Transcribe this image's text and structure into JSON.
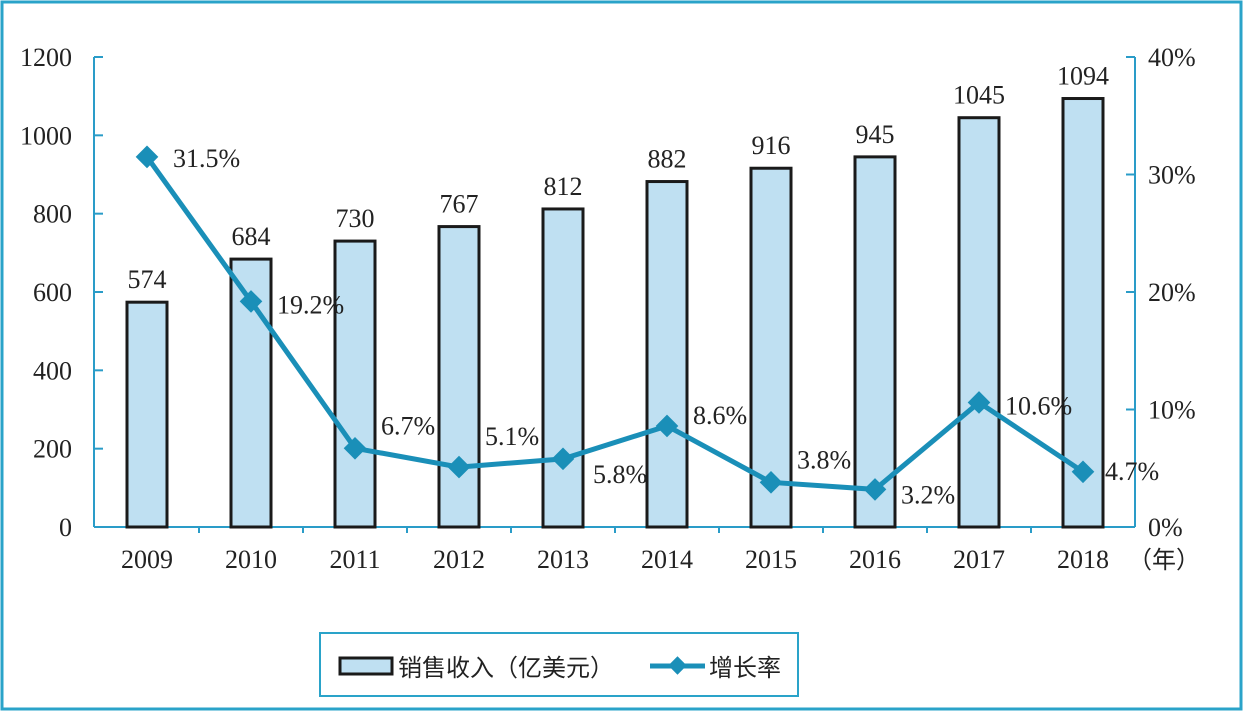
{
  "chart_data": {
    "type": "bar",
    "categories": [
      "2009",
      "2010",
      "2011",
      "2012",
      "2013",
      "2014",
      "2015",
      "2016",
      "2017",
      "2018"
    ],
    "x_unit": "（年）",
    "series": [
      {
        "name": "销售收入（亿美元）",
        "type": "bar",
        "axis": "left",
        "values": [
          574,
          684,
          730,
          767,
          812,
          882,
          916,
          945,
          1045,
          1094
        ],
        "labels": [
          "574",
          "684",
          "730",
          "767",
          "812",
          "882",
          "916",
          "945",
          "1045",
          "1094"
        ]
      },
      {
        "name": "增长率",
        "type": "line",
        "axis": "right",
        "values": [
          31.5,
          19.2,
          6.7,
          5.1,
          5.8,
          8.6,
          3.8,
          3.2,
          10.6,
          4.7
        ],
        "labels": [
          "31.5%",
          "19.2%",
          "6.7%",
          "5.1%",
          "5.8%",
          "8.6%",
          "3.8%",
          "3.2%",
          "10.6%",
          "4.7%"
        ]
      }
    ],
    "left_axis": {
      "ylim": [
        0,
        1200
      ],
      "ticks": [
        "0",
        "200",
        "400",
        "600",
        "800",
        "1000",
        "1200"
      ]
    },
    "right_axis": {
      "ylim": [
        0,
        40
      ],
      "ticks": [
        "0%",
        "10%",
        "20%",
        "30%",
        "40%"
      ]
    },
    "legend": {
      "placement": "bottom-center",
      "items": [
        "销售收入（亿美元）",
        "增长率"
      ]
    },
    "colors": {
      "bar_fill": "#bfe0f2",
      "bar_stroke": "#1a1a1a",
      "line": "#1a8fb8",
      "axis": "#2a9cc8",
      "frame": "#2aa3c9"
    }
  }
}
